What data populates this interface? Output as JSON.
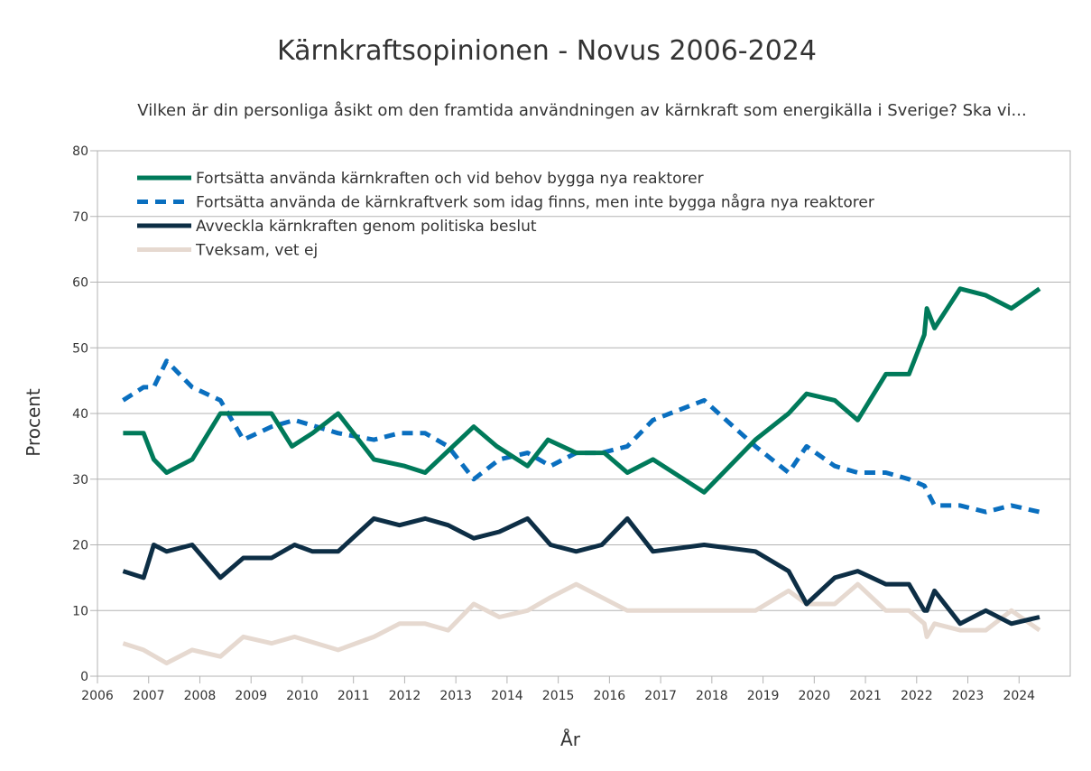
{
  "chart_data": {
    "type": "line",
    "title": "Kärnkraftsopinionen - Novus 2006-2024",
    "subtitle": "Vilken är din personliga åsikt om den framtida användningen av kärnkraft som energikälla i Sverige? Ska vi...",
    "xlabel": "År",
    "ylabel": "Procent",
    "xlim": [
      2006,
      2025
    ],
    "ylim": [
      0,
      80
    ],
    "xticks": [
      "2006",
      "2007",
      "2008",
      "2009",
      "2010",
      "2011",
      "2012",
      "2013",
      "2014",
      "2015",
      "2016",
      "2017",
      "2018",
      "2019",
      "2020",
      "2021",
      "2022",
      "2023",
      "2024"
    ],
    "yticks": [
      "0",
      "10",
      "20",
      "30",
      "40",
      "50",
      "60",
      "70",
      "80"
    ],
    "grid": "horizontal",
    "legend_position": "top-left",
    "series": [
      {
        "name": "Fortsätta använda kärnkraften och vid behov bygga nya reaktorer",
        "color": "#007a5a",
        "dash": "solid",
        "points": [
          [
            2006.5,
            37
          ],
          [
            2006.9,
            37
          ],
          [
            2007.1,
            33
          ],
          [
            2007.35,
            31
          ],
          [
            2007.85,
            33
          ],
          [
            2008.4,
            40
          ],
          [
            2009.4,
            40
          ],
          [
            2009.8,
            35
          ],
          [
            2010.2,
            37
          ],
          [
            2010.7,
            40
          ],
          [
            2011.4,
            33
          ],
          [
            2012.0,
            32
          ],
          [
            2012.4,
            31
          ],
          [
            2013.35,
            38
          ],
          [
            2013.8,
            35
          ],
          [
            2014.4,
            32
          ],
          [
            2014.8,
            36
          ],
          [
            2015.35,
            34
          ],
          [
            2015.9,
            34
          ],
          [
            2016.35,
            31
          ],
          [
            2016.85,
            33
          ],
          [
            2017.85,
            28
          ],
          [
            2018.85,
            36
          ],
          [
            2019.5,
            40
          ],
          [
            2019.85,
            43
          ],
          [
            2020.4,
            42
          ],
          [
            2020.85,
            39
          ],
          [
            2021.4,
            46
          ],
          [
            2021.85,
            46
          ],
          [
            2022.15,
            52
          ],
          [
            2022.2,
            56
          ],
          [
            2022.35,
            53
          ],
          [
            2022.85,
            59
          ],
          [
            2023.35,
            58
          ],
          [
            2023.85,
            56
          ],
          [
            2024.4,
            59
          ]
        ]
      },
      {
        "name": "Fortsätta använda de kärnkraftverk som idag finns, men inte bygga några nya reaktorer",
        "color": "#0a6fbf",
        "dash": "dashed",
        "points": [
          [
            2006.5,
            42
          ],
          [
            2006.9,
            44
          ],
          [
            2007.1,
            44
          ],
          [
            2007.35,
            48
          ],
          [
            2007.85,
            44
          ],
          [
            2008.4,
            42
          ],
          [
            2008.85,
            36
          ],
          [
            2009.4,
            38
          ],
          [
            2009.85,
            39
          ],
          [
            2010.7,
            37
          ],
          [
            2011.4,
            36
          ],
          [
            2011.9,
            37
          ],
          [
            2012.4,
            37
          ],
          [
            2012.85,
            35
          ],
          [
            2013.35,
            30
          ],
          [
            2013.85,
            33
          ],
          [
            2014.4,
            34
          ],
          [
            2014.85,
            32
          ],
          [
            2015.35,
            34
          ],
          [
            2015.85,
            34
          ],
          [
            2016.35,
            35
          ],
          [
            2016.85,
            39
          ],
          [
            2017.85,
            42
          ],
          [
            2018.85,
            35
          ],
          [
            2019.5,
            31
          ],
          [
            2019.85,
            35
          ],
          [
            2020.4,
            32
          ],
          [
            2020.85,
            31
          ],
          [
            2021.4,
            31
          ],
          [
            2021.85,
            30
          ],
          [
            2022.15,
            29
          ],
          [
            2022.35,
            26
          ],
          [
            2022.85,
            26
          ],
          [
            2023.35,
            25
          ],
          [
            2023.85,
            26
          ],
          [
            2024.4,
            25
          ]
        ]
      },
      {
        "name": "Avveckla kärnkraften genom politiska beslut",
        "color": "#0d2e45",
        "dash": "solid",
        "points": [
          [
            2006.5,
            16
          ],
          [
            2006.9,
            15
          ],
          [
            2007.1,
            20
          ],
          [
            2007.35,
            19
          ],
          [
            2007.85,
            20
          ],
          [
            2008.4,
            15
          ],
          [
            2008.85,
            18
          ],
          [
            2009.4,
            18
          ],
          [
            2009.85,
            20
          ],
          [
            2010.2,
            19
          ],
          [
            2010.7,
            19
          ],
          [
            2011.4,
            24
          ],
          [
            2011.9,
            23
          ],
          [
            2012.4,
            24
          ],
          [
            2012.85,
            23
          ],
          [
            2013.35,
            21
          ],
          [
            2013.85,
            22
          ],
          [
            2014.4,
            24
          ],
          [
            2014.85,
            20
          ],
          [
            2015.35,
            19
          ],
          [
            2015.85,
            20
          ],
          [
            2016.35,
            24
          ],
          [
            2016.85,
            19
          ],
          [
            2017.85,
            20
          ],
          [
            2018.85,
            19
          ],
          [
            2019.5,
            16
          ],
          [
            2019.85,
            11
          ],
          [
            2020.4,
            15
          ],
          [
            2020.85,
            16
          ],
          [
            2021.4,
            14
          ],
          [
            2021.85,
            14
          ],
          [
            2022.15,
            10
          ],
          [
            2022.2,
            10
          ],
          [
            2022.35,
            13
          ],
          [
            2022.85,
            8
          ],
          [
            2023.35,
            10
          ],
          [
            2023.85,
            8
          ],
          [
            2024.4,
            9
          ]
        ]
      },
      {
        "name": "Tveksam, vet ej",
        "color": "#e6d9d0",
        "dash": "solid",
        "points": [
          [
            2006.5,
            5
          ],
          [
            2006.9,
            4
          ],
          [
            2007.35,
            2
          ],
          [
            2007.85,
            4
          ],
          [
            2008.4,
            3
          ],
          [
            2008.85,
            6
          ],
          [
            2009.4,
            5
          ],
          [
            2009.85,
            6
          ],
          [
            2010.7,
            4
          ],
          [
            2011.4,
            6
          ],
          [
            2011.9,
            8
          ],
          [
            2012.4,
            8
          ],
          [
            2012.85,
            7
          ],
          [
            2013.35,
            11
          ],
          [
            2013.85,
            9
          ],
          [
            2014.4,
            10
          ],
          [
            2014.85,
            12
          ],
          [
            2015.35,
            14
          ],
          [
            2015.85,
            12
          ],
          [
            2016.35,
            10
          ],
          [
            2017.85,
            10
          ],
          [
            2018.85,
            10
          ],
          [
            2019.5,
            13
          ],
          [
            2019.85,
            11
          ],
          [
            2020.4,
            11
          ],
          [
            2020.85,
            14
          ],
          [
            2021.4,
            10
          ],
          [
            2021.85,
            10
          ],
          [
            2022.15,
            8
          ],
          [
            2022.2,
            6
          ],
          [
            2022.35,
            8
          ],
          [
            2022.85,
            7
          ],
          [
            2023.35,
            7
          ],
          [
            2023.85,
            10
          ],
          [
            2024.4,
            7
          ]
        ]
      }
    ]
  }
}
